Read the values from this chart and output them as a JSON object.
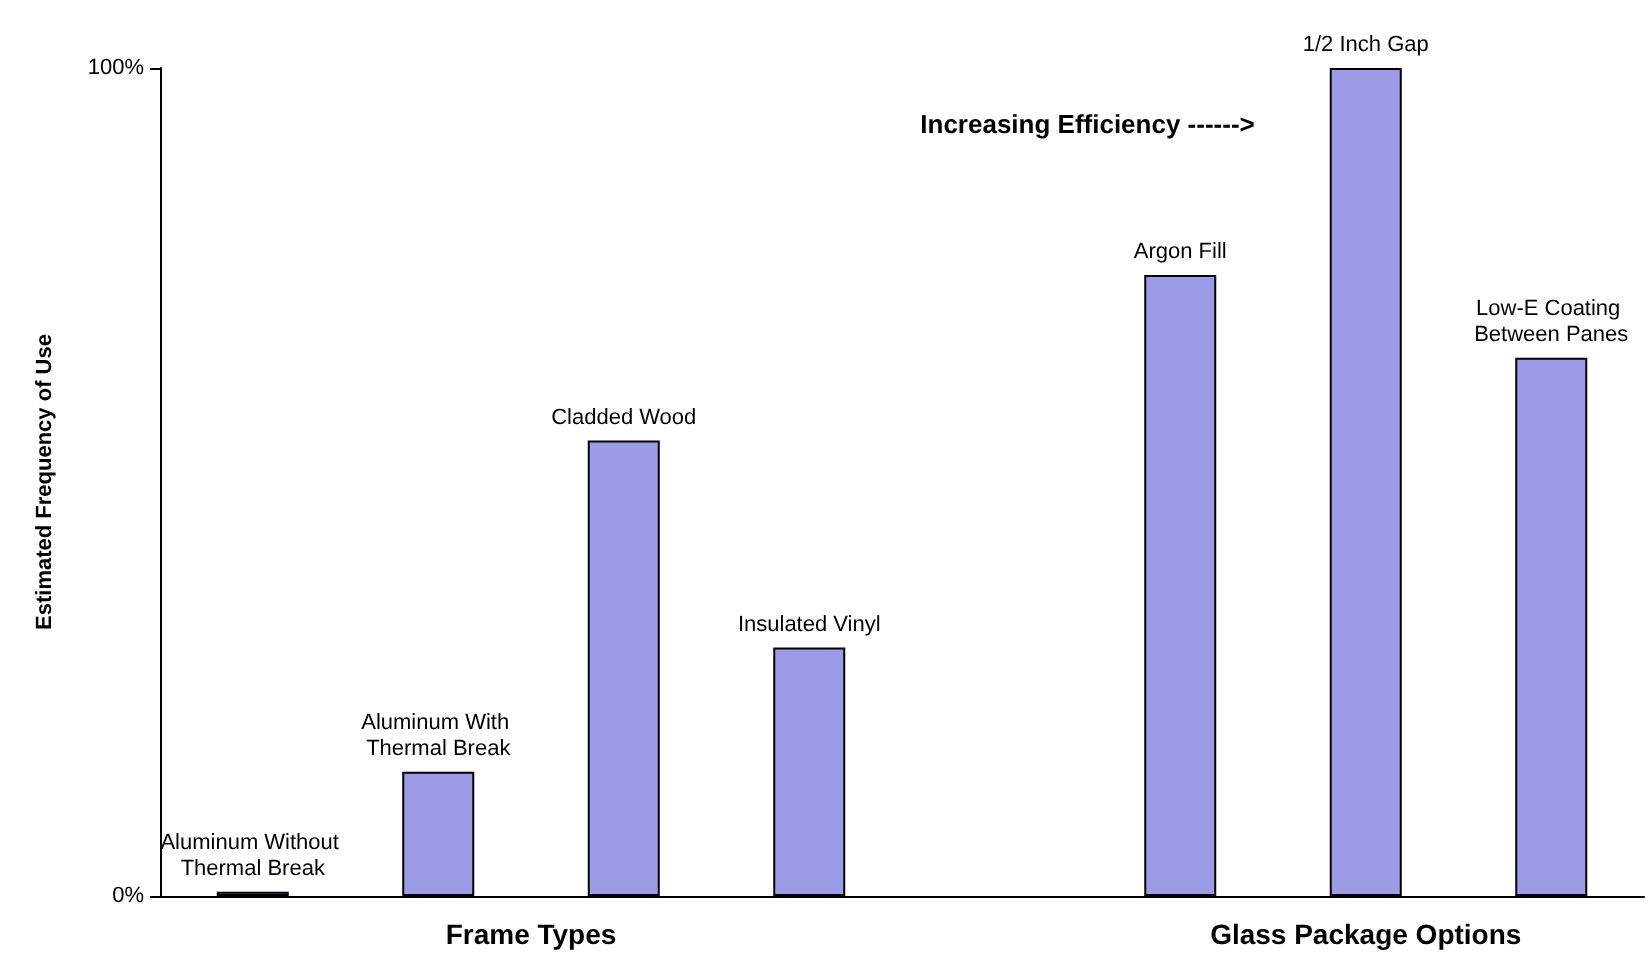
{
  "chart_data": {
    "type": "bar",
    "ylabel": "Estimated Frequency of Use",
    "categories": [
      "Aluminum Without Thermal Break",
      "Aluminum With Thermal Break",
      "Cladded Wood",
      "Insulated Vinyl",
      null,
      "Argon Fill",
      "1/2 Inch Gap",
      "Low-E Coating Between Panes"
    ],
    "values": [
      0.5,
      15,
      55,
      30,
      null,
      75,
      100,
      65
    ],
    "color": "#9c9ce6",
    "ylim": [
      0,
      100
    ],
    "yticks": [
      {
        "value": 0,
        "label": "0%"
      },
      {
        "value": 100,
        "label": "100%"
      }
    ],
    "grid": false,
    "annotations": [
      "Increasing Efficiency ------>",
      "Frame Types",
      "Glass Package Options"
    ]
  }
}
